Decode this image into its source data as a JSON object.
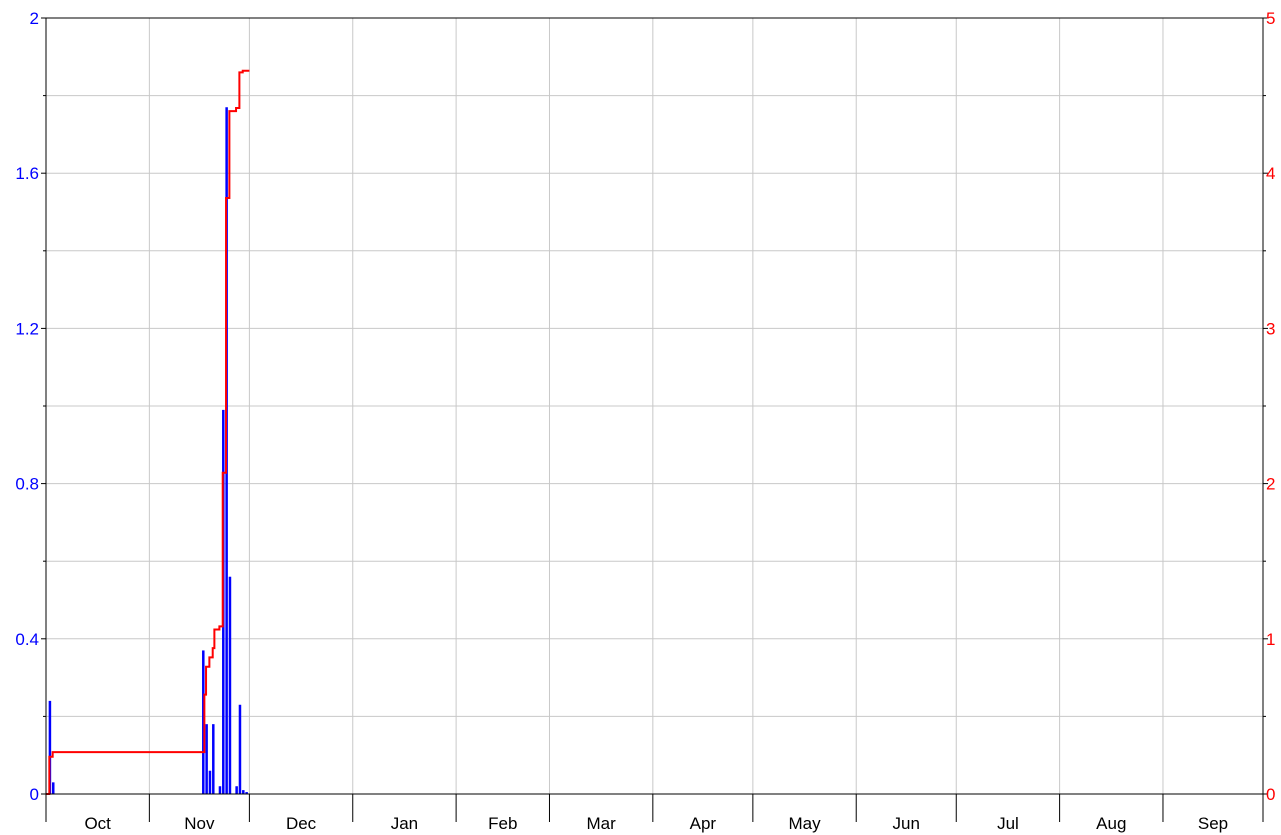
{
  "chart_data": {
    "type": "bar",
    "title": "",
    "xlabel": "",
    "ylabel_left": "",
    "ylabel_right": "",
    "x_axis": {
      "labels": [
        "Oct",
        "Nov",
        "Dec",
        "Jan",
        "Feb",
        "Mar",
        "Apr",
        "May",
        "Jun",
        "Jul",
        "Aug",
        "Sep"
      ],
      "range": [
        0,
        365
      ],
      "month_day_offsets": [
        0,
        31,
        61,
        92,
        123,
        151,
        182,
        212,
        243,
        273,
        304,
        335,
        365
      ]
    },
    "y_left": {
      "range": [
        0,
        2
      ],
      "ticks": [
        0,
        0.4,
        0.8,
        1.2,
        1.6,
        2
      ],
      "tick_labels": [
        "0",
        "0.4",
        "0.8",
        "1.2",
        "1.6",
        "2"
      ],
      "minor_ticks": [
        0.2,
        0.6,
        1.0,
        1.4,
        1.8
      ],
      "color": "#0000ff"
    },
    "y_right": {
      "range": [
        0,
        5
      ],
      "ticks": [
        0,
        1,
        2,
        3,
        4,
        5
      ],
      "tick_labels": [
        "0",
        "1",
        "2",
        "3",
        "4",
        "5"
      ],
      "color": "#ff0000"
    },
    "grid": true,
    "series": [
      {
        "type": "bar",
        "axis": "left",
        "color": "#0000ff",
        "points": [
          {
            "day": 1,
            "value": 0.24
          },
          {
            "day": 2,
            "value": 0.03
          },
          {
            "day": 47,
            "value": 0.37
          },
          {
            "day": 48,
            "value": 0.18
          },
          {
            "day": 49,
            "value": 0.06
          },
          {
            "day": 50,
            "value": 0.18
          },
          {
            "day": 52,
            "value": 0.02
          },
          {
            "day": 53,
            "value": 0.99
          },
          {
            "day": 54,
            "value": 1.77
          },
          {
            "day": 55,
            "value": 0.56
          },
          {
            "day": 57,
            "value": 0.02
          },
          {
            "day": 58,
            "value": 0.23
          },
          {
            "day": 59,
            "value": 0.01
          },
          {
            "day": 60,
            "value": 0.005
          }
        ]
      },
      {
        "type": "step-line",
        "axis": "right",
        "color": "#ff0000",
        "points": [
          {
            "day": 0,
            "value": 0
          },
          {
            "day": 1,
            "value": 0.24
          },
          {
            "day": 2,
            "value": 0.27
          },
          {
            "day": 47,
            "value": 0.27
          },
          {
            "day": 47.5,
            "value": 0.64
          },
          {
            "day": 48,
            "value": 0.82
          },
          {
            "day": 49,
            "value": 0.88
          },
          {
            "day": 50,
            "value": 0.94
          },
          {
            "day": 50.5,
            "value": 1.06
          },
          {
            "day": 52,
            "value": 1.08
          },
          {
            "day": 53,
            "value": 2.07
          },
          {
            "day": 54,
            "value": 3.84
          },
          {
            "day": 55,
            "value": 4.4
          },
          {
            "day": 57,
            "value": 4.42
          },
          {
            "day": 58,
            "value": 4.65
          },
          {
            "day": 59,
            "value": 4.66
          },
          {
            "day": 61,
            "value": 4.66
          }
        ]
      }
    ]
  }
}
